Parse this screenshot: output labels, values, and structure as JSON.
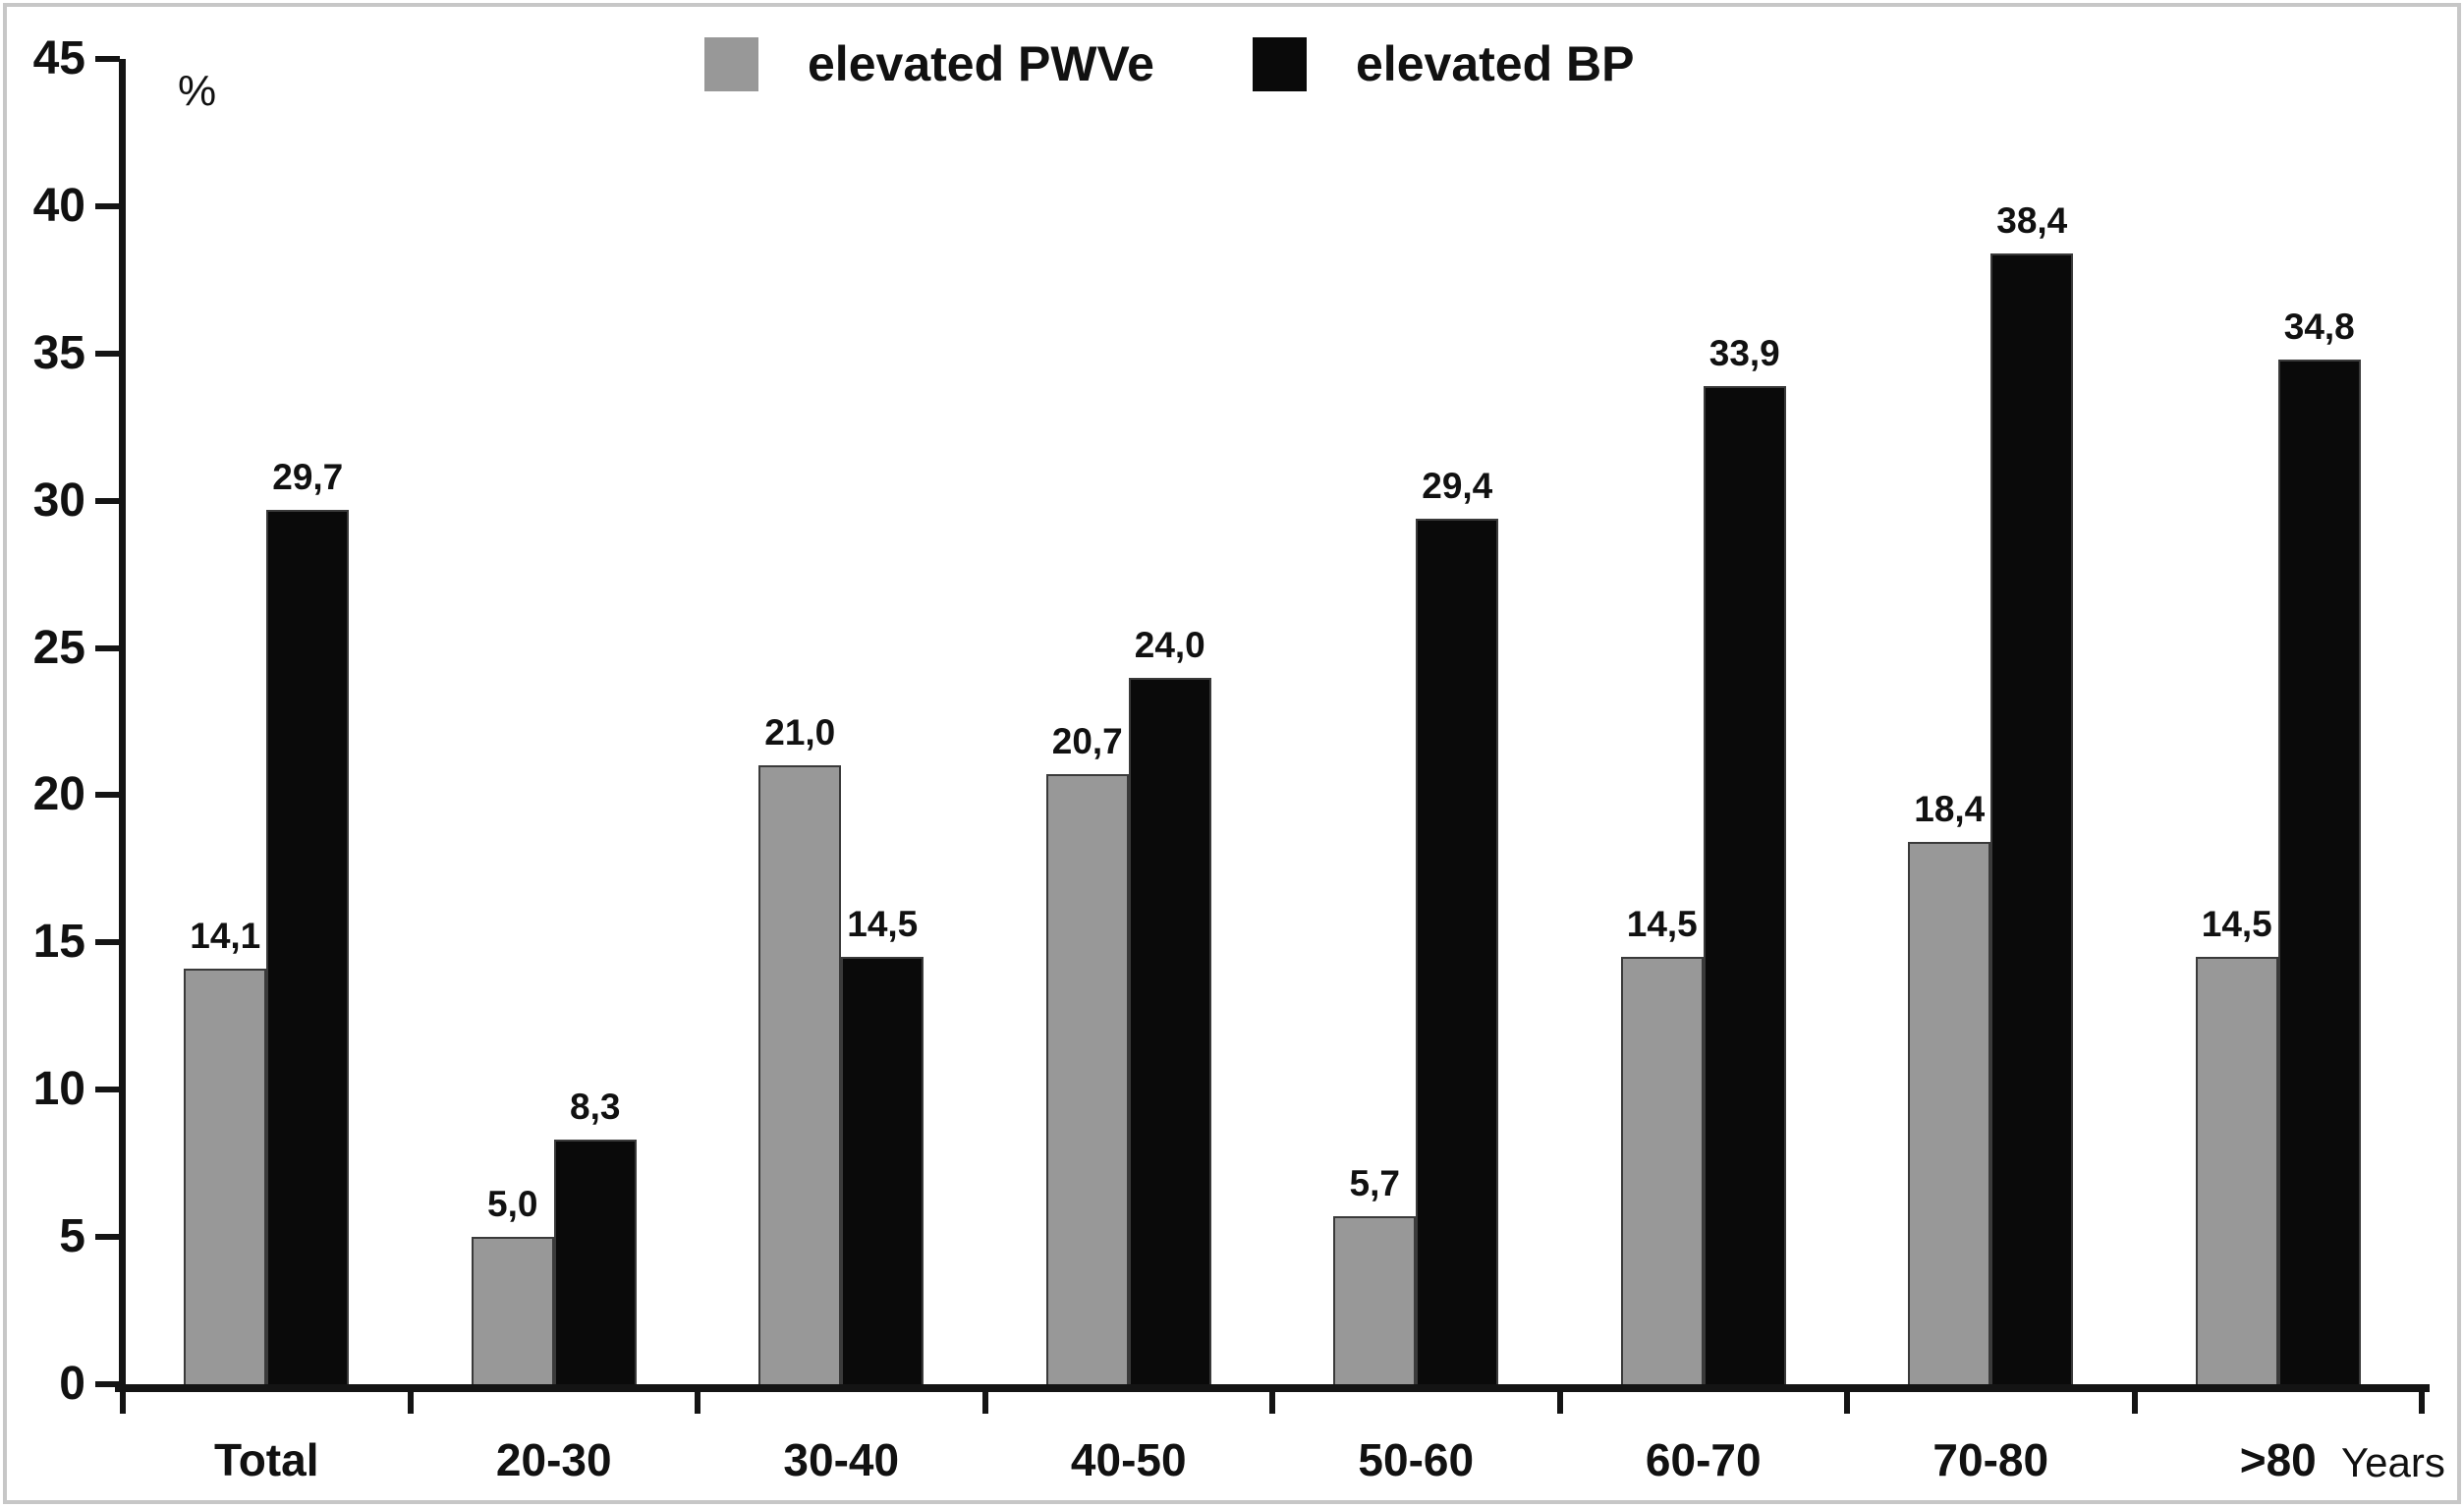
{
  "chart_data": {
    "type": "bar",
    "title": "",
    "ylabel": "%",
    "xlabel": "Years",
    "ylim": [
      0,
      45
    ],
    "yticks": [
      0,
      5,
      10,
      15,
      20,
      25,
      30,
      35,
      40,
      45
    ],
    "grid": false,
    "legend_position": "top-center",
    "decimal_separator": ",",
    "categories": [
      "Total",
      "20-30",
      "30-40",
      "40-50",
      "50-60",
      "60-70",
      "70-80",
      ">80"
    ],
    "series": [
      {
        "name": "elevated PWVe",
        "color": "#989898",
        "values": [
          14.1,
          5.0,
          21.0,
          20.7,
          5.7,
          14.5,
          18.4,
          14.5
        ]
      },
      {
        "name": "elevated BP",
        "color": "#0a0a0a",
        "values": [
          29.7,
          8.3,
          14.5,
          24.0,
          29.4,
          33.9,
          38.4,
          34.8
        ]
      }
    ]
  },
  "colors": {
    "axis": "#141414",
    "text": "#111111",
    "bar_border": "#3a3a3a",
    "frame_border": "#c7c7c7",
    "background": "#ffffff"
  }
}
